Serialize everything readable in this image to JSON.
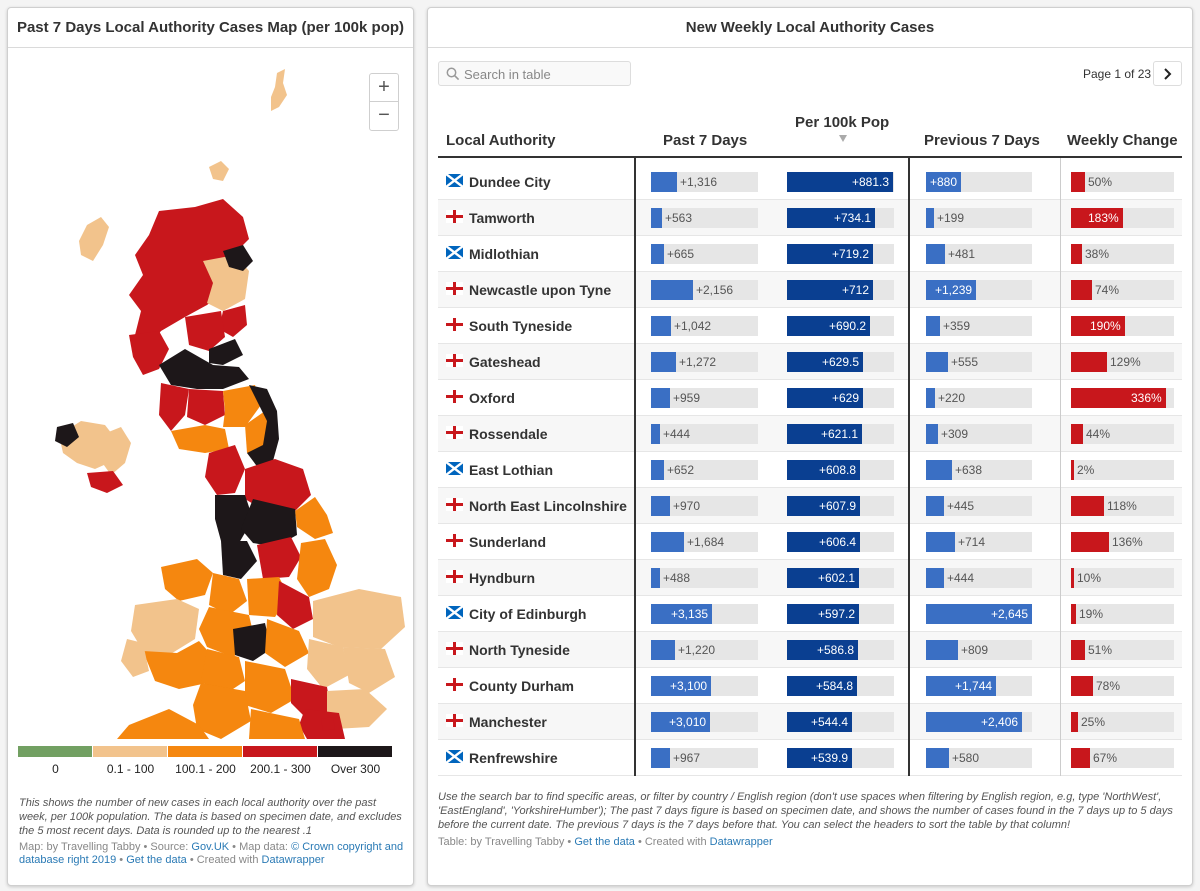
{
  "map_panel": {
    "title": "Past 7 Days Local Authority Cases Map (per 100k pop)",
    "zoom_in": "+",
    "zoom_out": "−",
    "legend": [
      {
        "label": "0",
        "color": "#72a062"
      },
      {
        "label": "0.1 - 100",
        "color": "#f2c38c"
      },
      {
        "label": "100.1 - 200",
        "color": "#f5870f"
      },
      {
        "label": "200.1 - 300",
        "color": "#c8171c"
      },
      {
        "label": "Over 300",
        "color": "#1d1719"
      }
    ],
    "description": "This shows the number of new cases in each local authority over the past week, per 100k population. The data is based on specimen date, and excludes the 5 most recent days. Data is rounded up to the nearest .1",
    "credit": {
      "prefix": "Map: by Travelling Tabby • Source: ",
      "source_link": "Gov.UK",
      "mid": " • Map data: ",
      "mapdata_link": "© Crown copyright and database right 2019",
      "sep": " • ",
      "data_link": "Get the data",
      "suffix": " • Created with ",
      "dw_link": "Datawrapper"
    }
  },
  "table_panel": {
    "title": "New Weekly Local Authority Cases",
    "search_placeholder": "Search in table",
    "pagination": "Page 1 of 23",
    "columns": [
      "Local Authority",
      "Past 7 Days",
      "Per 100k Pop",
      "Previous 7 Days",
      "Weekly Change"
    ],
    "rows": [
      {
        "name": "Dundee City",
        "country": "scotland",
        "past7": 1316,
        "past7_label": "+1,316",
        "per100k": 881.3,
        "per100k_label": "+881.3",
        "prev7": 880,
        "prev7_label": "+880",
        "change": 50,
        "change_label": "50%"
      },
      {
        "name": "Tamworth",
        "country": "england",
        "past7": 563,
        "past7_label": "+563",
        "per100k": 734.1,
        "per100k_label": "+734.1",
        "prev7": 199,
        "prev7_label": "+199",
        "change": 183,
        "change_label": "183%"
      },
      {
        "name": "Midlothian",
        "country": "scotland",
        "past7": 665,
        "past7_label": "+665",
        "per100k": 719.2,
        "per100k_label": "+719.2",
        "prev7": 481,
        "prev7_label": "+481",
        "change": 38,
        "change_label": "38%"
      },
      {
        "name": "Newcastle upon Tyne",
        "country": "england",
        "past7": 2156,
        "past7_label": "+2,156",
        "per100k": 712,
        "per100k_label": "+712",
        "prev7": 1239,
        "prev7_label": "+1,239",
        "change": 74,
        "change_label": "74%"
      },
      {
        "name": "South Tyneside",
        "country": "england",
        "past7": 1042,
        "past7_label": "+1,042",
        "per100k": 690.2,
        "per100k_label": "+690.2",
        "prev7": 359,
        "prev7_label": "+359",
        "change": 190,
        "change_label": "190%"
      },
      {
        "name": "Gateshead",
        "country": "england",
        "past7": 1272,
        "past7_label": "+1,272",
        "per100k": 629.5,
        "per100k_label": "+629.5",
        "prev7": 555,
        "prev7_label": "+555",
        "change": 129,
        "change_label": "129%"
      },
      {
        "name": "Oxford",
        "country": "england",
        "past7": 959,
        "past7_label": "+959",
        "per100k": 629,
        "per100k_label": "+629",
        "prev7": 220,
        "prev7_label": "+220",
        "change": 336,
        "change_label": "336%"
      },
      {
        "name": "Rossendale",
        "country": "england",
        "past7": 444,
        "past7_label": "+444",
        "per100k": 621.1,
        "per100k_label": "+621.1",
        "prev7": 309,
        "prev7_label": "+309",
        "change": 44,
        "change_label": "44%"
      },
      {
        "name": "East Lothian",
        "country": "scotland",
        "past7": 652,
        "past7_label": "+652",
        "per100k": 608.8,
        "per100k_label": "+608.8",
        "prev7": 638,
        "prev7_label": "+638",
        "change": 2,
        "change_label": "2%"
      },
      {
        "name": "North East Lincolnshire",
        "country": "england",
        "past7": 970,
        "past7_label": "+970",
        "per100k": 607.9,
        "per100k_label": "+607.9",
        "prev7": 445,
        "prev7_label": "+445",
        "change": 118,
        "change_label": "118%"
      },
      {
        "name": "Sunderland",
        "country": "england",
        "past7": 1684,
        "past7_label": "+1,684",
        "per100k": 606.4,
        "per100k_label": "+606.4",
        "prev7": 714,
        "prev7_label": "+714",
        "change": 136,
        "change_label": "136%"
      },
      {
        "name": "Hyndburn",
        "country": "england",
        "past7": 488,
        "past7_label": "+488",
        "per100k": 602.1,
        "per100k_label": "+602.1",
        "prev7": 444,
        "prev7_label": "+444",
        "change": 10,
        "change_label": "10%"
      },
      {
        "name": "City of Edinburgh",
        "country": "scotland",
        "past7": 3135,
        "past7_label": "+3,135",
        "per100k": 597.2,
        "per100k_label": "+597.2",
        "prev7": 2645,
        "prev7_label": "+2,645",
        "change": 19,
        "change_label": "19%"
      },
      {
        "name": "North Tyneside",
        "country": "england",
        "past7": 1220,
        "past7_label": "+1,220",
        "per100k": 586.8,
        "per100k_label": "+586.8",
        "prev7": 809,
        "prev7_label": "+809",
        "change": 51,
        "change_label": "51%"
      },
      {
        "name": "County Durham",
        "country": "england",
        "past7": 3100,
        "past7_label": "+3,100",
        "per100k": 584.8,
        "per100k_label": "+584.8",
        "prev7": 1744,
        "prev7_label": "+1,744",
        "change": 78,
        "change_label": "78%"
      },
      {
        "name": "Manchester",
        "country": "england",
        "past7": 3010,
        "past7_label": "+3,010",
        "per100k": 544.4,
        "per100k_label": "+544.4",
        "prev7": 2406,
        "prev7_label": "+2,406",
        "change": 25,
        "change_label": "25%"
      },
      {
        "name": "Renfrewshire",
        "country": "scotland",
        "past7": 967,
        "past7_label": "+967",
        "per100k": 539.9,
        "per100k_label": "+539.9",
        "prev7": 580,
        "prev7_label": "+580",
        "change": 67,
        "change_label": "67%"
      }
    ],
    "description": "Use the search bar to find specific areas, or filter by country / English region (don't use spaces when filtering by English region, e.g, type 'NorthWest', 'EastEngland', 'YorkshireHumber'); The past 7 days figure is based on specimen date, and shows the number of cases found in the 7 days up to 5 days before the current date. The previous 7 days is the 7 days before that. You can select the headers to sort the table by that column!",
    "credit": {
      "prefix": "Table: by Travelling Tabby • ",
      "data_link": "Get the data",
      "suffix": " • Created with ",
      "dw_link": "Datawrapper"
    }
  },
  "colors": {
    "blue_bar": "#3a6fc4",
    "dark_blue_bar": "#0a3f91",
    "red_bar": "#c8171c",
    "track": "#e6e6e6",
    "link": "#2a7ab5"
  },
  "icons": {
    "search": "magnifier-icon",
    "next": "chevron-right-icon",
    "flag_scotland": "scotland-flag-icon",
    "flag_england": "england-flag-icon"
  }
}
